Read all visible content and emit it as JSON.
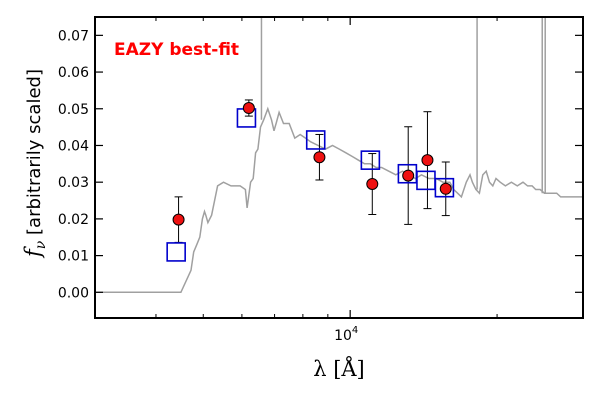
{
  "chart_data": {
    "type": "scatter",
    "annotation": "EAZY best-fit",
    "annotation_color": "#ff0000",
    "xlabel": "λ [Å]",
    "ylabel_symbol": "f",
    "ylabel_subscript": "ν",
    "ylabel_text": " [arbitrarily scaled]",
    "xscale": "log",
    "xlim": [
      3000,
      30000
    ],
    "ylim": [
      -0.007,
      0.075
    ],
    "yticks": [
      0.0,
      0.01,
      0.02,
      0.03,
      0.04,
      0.05,
      0.06,
      0.07
    ],
    "ytick_labels": [
      "0.00",
      "0.01",
      "0.02",
      "0.03",
      "0.04",
      "0.05",
      "0.06",
      "0.07"
    ],
    "xtick_major": [
      10000
    ],
    "xtick_label_base": "10",
    "xtick_label_exp": "4",
    "xtick_minor": [
      4000,
      5000,
      6000,
      7000,
      8000,
      9000,
      20000
    ],
    "series": [
      {
        "kind": "template",
        "color": "#a0a0a0",
        "x": [
          3000,
          4500,
          4720,
          4780,
          4850,
          4920,
          4980,
          5030,
          5060,
          5110,
          5200,
          5350,
          5500,
          5700,
          5950,
          6100,
          6150,
          6250,
          6330,
          6400,
          6470,
          6550,
          6650,
          6780,
          6900,
          6980,
          7050,
          7150,
          7300,
          7500,
          7700,
          7900,
          8100,
          8300,
          8600,
          8900,
          9200,
          9500,
          9800,
          10100,
          10400,
          10700,
          11000,
          11300,
          11600,
          12000,
          12400,
          12800,
          13200,
          13600,
          14000,
          14500,
          15000,
          15500,
          16000,
          16300,
          16600,
          16900,
          17300,
          17600,
          17800,
          18100,
          18400,
          18700,
          19000,
          19300,
          19600,
          19900,
          20300,
          20800,
          21400,
          22000,
          22600,
          23100,
          23600,
          24000,
          24500,
          25000,
          25500,
          26000,
          26500,
          27000,
          27500,
          28000,
          28500,
          29000,
          30000
        ],
        "y": [
          0.0,
          0.0,
          0.006,
          0.011,
          0.013,
          0.015,
          0.02,
          0.022,
          0.021,
          0.019,
          0.021,
          0.029,
          0.03,
          0.029,
          0.029,
          0.028,
          0.023,
          0.03,
          0.031,
          0.038,
          0.039,
          0.045,
          0.047,
          0.05,
          0.047,
          0.044,
          0.046,
          0.049,
          0.046,
          0.046,
          0.042,
          0.043,
          0.042,
          0.041,
          0.04,
          0.039,
          0.04,
          0.039,
          0.038,
          0.037,
          0.036,
          0.035,
          0.035,
          0.034,
          0.034,
          0.033,
          0.032,
          0.033,
          0.032,
          0.031,
          0.032,
          0.031,
          0.031,
          0.03,
          0.03,
          0.028,
          0.027,
          0.026,
          0.03,
          0.032,
          0.03,
          0.028,
          0.027,
          0.032,
          0.033,
          0.03,
          0.029,
          0.031,
          0.03,
          0.029,
          0.03,
          0.029,
          0.03,
          0.029,
          0.029,
          0.028,
          0.028,
          0.027,
          0.027,
          0.027,
          0.027,
          0.026,
          0.026,
          0.026,
          0.026,
          0.026,
          0.026
        ]
      },
      {
        "kind": "template-spikes",
        "color": "#a0a0a0",
        "x": [
          6580,
          18200,
          24750,
          25100
        ],
        "y_top": [
          0.075,
          0.075,
          0.075,
          0.075
        ],
        "y_bottom": [
          0.047,
          0.028,
          0.027,
          0.027
        ]
      },
      {
        "kind": "model-photometry",
        "marker": "open-square",
        "color": "#0000cc",
        "x": [
          4400,
          6130,
          8500,
          11000,
          13100,
          14300,
          15600
        ],
        "y": [
          0.011,
          0.0475,
          0.0415,
          0.036,
          0.0323,
          0.0305,
          0.0285
        ]
      },
      {
        "kind": "observed",
        "marker": "filled-circle",
        "color": "#ee1111",
        "x": [
          4450,
          6200,
          8650,
          11100,
          13150,
          14400,
          15700
        ],
        "y": [
          0.0198,
          0.0502,
          0.0368,
          0.0295,
          0.0318,
          0.036,
          0.0282
        ],
        "yerr": [
          0.0062,
          0.0022,
          0.0062,
          0.0083,
          0.0133,
          0.0132,
          0.0073
        ]
      }
    ]
  }
}
